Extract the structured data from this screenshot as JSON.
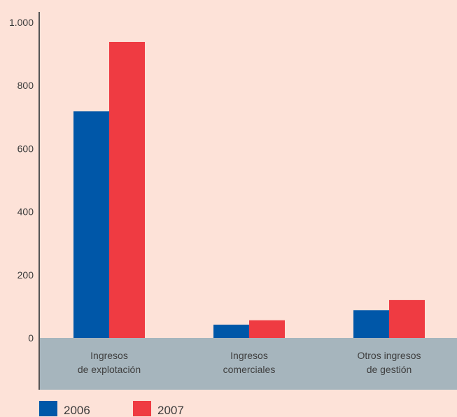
{
  "chart_data": {
    "type": "bar",
    "categories": [
      [
        "Ingresos",
        "de explotación"
      ],
      [
        "Ingresos",
        "comerciales"
      ],
      [
        "Otros ingresos",
        "de gestión"
      ]
    ],
    "series": [
      {
        "name": "2006",
        "values": [
          718,
          42,
          88
        ],
        "color": "#0057a8"
      },
      {
        "name": "2007",
        "values": [
          938,
          56,
          120
        ],
        "color": "#ef3b42"
      }
    ],
    "ylim": [
      0,
      1000
    ],
    "yticks": [
      {
        "value": 0,
        "label": "0"
      },
      {
        "value": 200,
        "label": "200"
      },
      {
        "value": 400,
        "label": "400"
      },
      {
        "value": 600,
        "label": "600"
      },
      {
        "value": 800,
        "label": "800"
      },
      {
        "value": 1000,
        "label": "1.000"
      }
    ],
    "grid": false,
    "legend_position": "bottom-left",
    "colors": {
      "background": "#fde2d8",
      "category_band": "#a6b5bd",
      "axis": "#555555"
    }
  }
}
